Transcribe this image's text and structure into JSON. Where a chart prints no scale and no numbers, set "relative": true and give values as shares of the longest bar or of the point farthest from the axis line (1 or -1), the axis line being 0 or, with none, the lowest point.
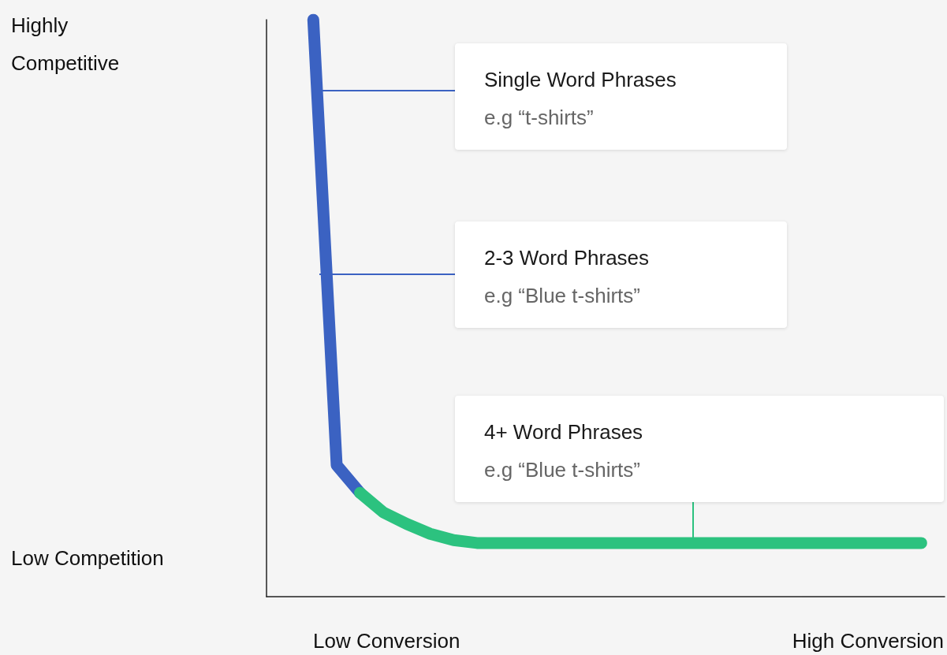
{
  "chart_data": {
    "type": "line",
    "relative": true,
    "categories": [
      null,
      null,
      null,
      null,
      null,
      null,
      null,
      null,
      null,
      null,
      null,
      null,
      null,
      null,
      null,
      null,
      null,
      null,
      null,
      null,
      null,
      null,
      null,
      null,
      null,
      null,
      null,
      null,
      null,
      null
    ],
    "series": [
      {
        "color": "#3b62c2",
        "values": [
          null,
          null,
          1,
          0.228,
          0.18,
          null,
          null,
          null,
          null,
          null,
          null,
          null,
          null,
          null,
          null,
          null,
          null,
          null,
          null,
          null,
          null,
          null,
          null,
          null,
          null,
          null,
          null,
          null,
          null,
          null
        ]
      },
      {
        "color": "#2cc27f",
        "values": [
          null,
          null,
          null,
          null,
          0.18,
          0.146,
          0.126,
          0.109,
          0.098,
          0.093,
          0.093,
          0.093,
          0.093,
          0.093,
          0.093,
          0.093,
          0.093,
          0.093,
          0.093,
          0.093,
          0.093,
          0.093,
          0.093,
          0.093,
          0.093,
          0.093,
          0.093,
          0.093,
          0.093,
          null
        ]
      }
    ],
    "annotations": [
      "Single Word Phrases\ne.g “t-shirts”",
      "2-3 Word Phrases\ne.g “Blue t-shirts”",
      "4+ Word Phrases\ne.g “Blue t-shirts”",
      "Highly Competitive",
      "Low Competition",
      "Low Conversion",
      "High Conversion"
    ],
    "marker": "none",
    "line_style": "solid"
  }
}
